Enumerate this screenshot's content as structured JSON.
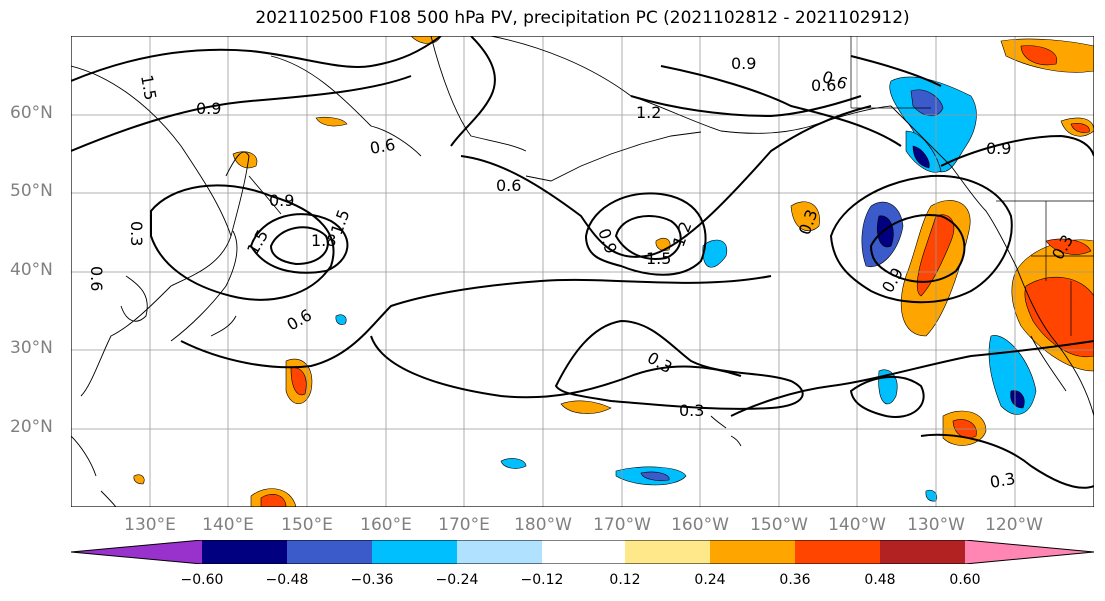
{
  "title": "2021102500 F108 500 hPa PV, precipitation PC (2021102812 - 2021102912)",
  "map": {
    "projection": "Plate Carree (cylindrical)",
    "lon_range_east": [
      120,
      250
    ],
    "lat_range": [
      10,
      70
    ],
    "graticule": true,
    "land_features": [
      "coastlines",
      "country borders",
      "US state borders"
    ],
    "background_color": "#ffffff",
    "grid_color": "#999999"
  },
  "axes": {
    "lat_labels": [
      "60°N",
      "50°N",
      "40°N",
      "30°N",
      "20°N"
    ],
    "lon_labels": [
      "130°E",
      "140°E",
      "150°E",
      "160°E",
      "170°E",
      "180°W",
      "170°W",
      "160°W",
      "150°W",
      "140°W",
      "130°W",
      "120°W"
    ]
  },
  "contours": {
    "variable": "500 hPa PV",
    "levels": [
      0.3,
      0.6,
      0.9,
      1.2,
      1.5,
      1.8
    ],
    "labels": [
      "1.5",
      "0.9",
      "1.2",
      "0.9",
      "0.6",
      "0.6",
      "0.9",
      "0.6",
      "0.3",
      "0.9",
      "1.5",
      "1.2",
      "0.9",
      "1.5",
      "1.8",
      "1.5",
      "0.6",
      "0.6",
      "0.3",
      "0.3",
      "0.3",
      "0.9",
      "0.3",
      "0.6",
      "0.3"
    ],
    "color": "#000000"
  },
  "shading": {
    "variable": "precipitation PC",
    "colors": [
      "#9932cc",
      "#000080",
      "#3a5bc9",
      "#00bfff",
      "#b0e2ff",
      "#ffffff",
      "#ffe88a",
      "#ffa500",
      "#ff4500",
      "#b22222",
      "#ff85b2"
    ],
    "bounds": [
      -0.6,
      -0.48,
      -0.36,
      -0.24,
      -0.12,
      0.12,
      0.24,
      0.36,
      0.48,
      0.6
    ]
  },
  "colorbar": {
    "tick_labels": [
      "−0.60",
      "−0.48",
      "−0.36",
      "−0.24",
      "−0.12",
      "0.12",
      "0.24",
      "0.36",
      "0.48",
      "0.60"
    ],
    "extend": "both"
  }
}
